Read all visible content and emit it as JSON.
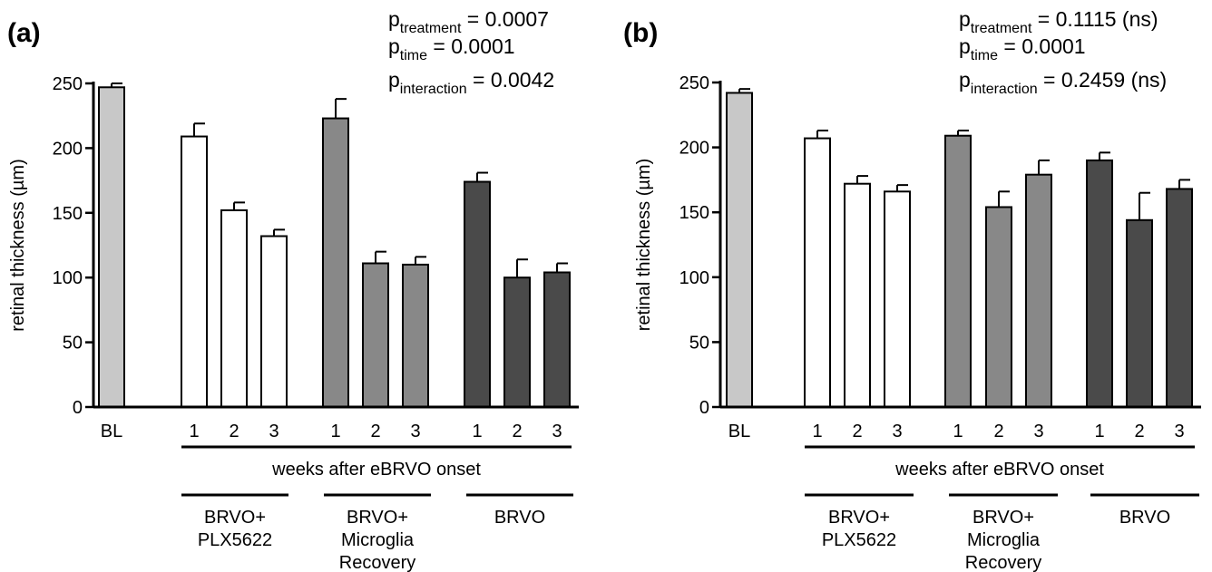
{
  "chart_data": [
    {
      "type": "bar",
      "panel_label": "(a)",
      "ylabel": "retinal thickness (µm)",
      "ylim": [
        0,
        250
      ],
      "yticks": [
        "0",
        "50",
        "100",
        "150",
        "200",
        "250"
      ],
      "xlabel": "weeks after eBRVO onset",
      "categories": [
        "BL",
        "1",
        "2",
        "3",
        "1",
        "2",
        "3",
        "1",
        "2",
        "3"
      ],
      "group_of": [
        "baseline",
        "plx",
        "plx",
        "plx",
        "recovery",
        "recovery",
        "recovery",
        "brvo",
        "brvo",
        "brvo"
      ],
      "values": [
        247,
        209,
        152,
        132,
        223,
        111,
        110,
        174,
        100,
        104
      ],
      "errors": [
        3,
        10,
        6,
        5,
        15,
        9,
        6,
        7,
        14,
        7
      ],
      "stats": [
        {
          "sym": "p",
          "sub": "treatment",
          "rest": " = 0.0007"
        },
        {
          "sym": "p",
          "sub": "time",
          "rest": " = 0.0001"
        },
        {
          "sym": "p",
          "sub": "interaction",
          "rest": " = 0.0042"
        }
      ]
    },
    {
      "type": "bar",
      "panel_label": "(b)",
      "ylabel": "retinal thickness (µm)",
      "ylim": [
        0,
        250
      ],
      "yticks": [
        "0",
        "50",
        "100",
        "150",
        "200",
        "250"
      ],
      "xlabel": "weeks after eBRVO onset",
      "categories": [
        "BL",
        "1",
        "2",
        "3",
        "1",
        "2",
        "3",
        "1",
        "2",
        "3"
      ],
      "group_of": [
        "baseline",
        "plx",
        "plx",
        "plx",
        "recovery",
        "recovery",
        "recovery",
        "brvo",
        "brvo",
        "brvo"
      ],
      "values": [
        242,
        207,
        172,
        166,
        209,
        154,
        179,
        190,
        144,
        168
      ],
      "errors": [
        3,
        6,
        6,
        5,
        4,
        12,
        11,
        6,
        21,
        7
      ],
      "stats": [
        {
          "sym": "p",
          "sub": "treatment",
          "rest": " = 0.1115 (ns)"
        },
        {
          "sym": "p",
          "sub": "time",
          "rest": " = 0.0001"
        },
        {
          "sym": "p",
          "sub": "interaction",
          "rest": " = 0.2459 (ns)"
        }
      ]
    }
  ],
  "groups": [
    {
      "key": "plx",
      "lines": [
        "BRVO+",
        "PLX5622"
      ]
    },
    {
      "key": "recovery",
      "lines": [
        "BRVO+",
        "Microglia",
        "Recovery"
      ]
    },
    {
      "key": "brvo",
      "lines": [
        "BRVO"
      ]
    }
  ],
  "colors": {
    "baseline": "#c8c8c8",
    "plx": "#ffffff",
    "recovery": "#888888",
    "brvo": "#4a4a4a",
    "stroke": "#000000"
  }
}
